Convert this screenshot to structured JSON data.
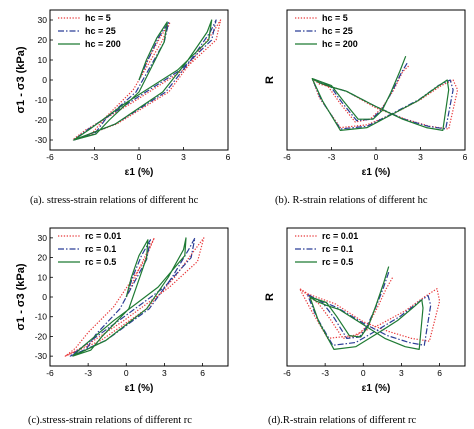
{
  "chart_data": [
    {
      "type": "line",
      "caption": "(a). stress-strain relations of different hc",
      "xlabel": "ε1 (%)",
      "ylabel": "σ1 - σ3 (kPa)",
      "xlim": [
        -6,
        6
      ],
      "ylim": [
        -35,
        35
      ],
      "xticks": [
        "-6",
        "-3",
        "0",
        "3",
        "6"
      ],
      "yticks": [
        "-30",
        "-20",
        "-10",
        "0",
        "10",
        "20",
        "30"
      ],
      "legend": "top-left",
      "series": [
        {
          "name": "hc = 5",
          "color": "#e8393b",
          "dash": "dotted",
          "x": [
            0.0,
            0.6,
            1.4,
            2.1,
            1.6,
            -0.4,
            -2.3,
            -3.2,
            -4.4,
            -1.5,
            2.0,
            3.6,
            5.0,
            5.5,
            5.2,
            3.0,
            -0.6,
            -3.6,
            -4.5
          ],
          "y": [
            0,
            10,
            21,
            29,
            20,
            -5,
            -19,
            -27,
            -30,
            -22,
            -6,
            10,
            24,
            30,
            20,
            5,
            -12,
            -25,
            -30
          ]
        },
        {
          "name": "hc = 25",
          "color": "#2b3d96",
          "dash": "dashdot",
          "x": [
            0.0,
            0.6,
            1.3,
            2.0,
            1.7,
            -0.2,
            -2.2,
            -3.0,
            -4.4,
            -1.6,
            1.8,
            3.5,
            4.8,
            5.2,
            4.9,
            2.8,
            -0.8,
            -3.5,
            -4.4
          ],
          "y": [
            0,
            10,
            21,
            29,
            19,
            -6,
            -19,
            -27,
            -30,
            -22,
            -6,
            10,
            24,
            30,
            20,
            5,
            -12,
            -25,
            -30
          ]
        },
        {
          "name": "hc = 200",
          "color": "#1e7a33",
          "dash": "solid",
          "x": [
            0.0,
            0.5,
            1.2,
            1.9,
            1.7,
            0.0,
            -2.0,
            -2.9,
            -4.4,
            -1.6,
            1.6,
            3.3,
            4.6,
            4.9,
            4.7,
            2.6,
            -1.0,
            -3.4,
            -4.4
          ],
          "y": [
            0,
            10,
            21,
            29,
            19,
            -6,
            -20,
            -27,
            -30,
            -22,
            -6,
            10,
            24,
            30,
            20,
            5,
            -12,
            -25,
            -30
          ]
        }
      ]
    },
    {
      "type": "line",
      "caption": "(b). R-strain relations of different hc",
      "xlabel": "ε1 (%)",
      "ylabel": "R",
      "xlim": [
        -6,
        6
      ],
      "ylim": [
        0.0,
        1.0
      ],
      "xticks": [
        "-6",
        "-3",
        "0",
        "3",
        "6"
      ],
      "legend": "top-left",
      "series": [
        {
          "name": "hc = 5",
          "color": "#e8393b",
          "dash": "dotted",
          "x": [
            2.2,
            1.8,
            1.2,
            0.4,
            -0.4,
            -1.4,
            -2.4,
            -3.2,
            -4.3,
            -3.8,
            -2.4,
            -0.6,
            1.2,
            3.0,
            4.4,
            5.2,
            5.5,
            4.9,
            3.6,
            2.0,
            0.0,
            -2.0,
            -3.0,
            -3.8,
            -4.3
          ],
          "y": [
            0.6,
            0.56,
            0.43,
            0.3,
            0.22,
            0.2,
            0.33,
            0.45,
            0.51,
            0.37,
            0.16,
            0.18,
            0.26,
            0.36,
            0.46,
            0.5,
            0.43,
            0.15,
            0.17,
            0.22,
            0.3,
            0.42,
            0.45,
            0.47,
            0.51
          ]
        },
        {
          "name": "hc = 25",
          "color": "#2b3d96",
          "dash": "dashdot",
          "x": [
            2.1,
            1.7,
            1.1,
            0.4,
            -0.3,
            -1.3,
            -2.3,
            -3.1,
            -4.3,
            -3.7,
            -2.4,
            -0.6,
            1.1,
            2.9,
            4.2,
            5.0,
            5.2,
            4.7,
            3.5,
            1.9,
            0.0,
            -2.0,
            -3.0,
            -3.8,
            -4.3
          ],
          "y": [
            0.62,
            0.55,
            0.42,
            0.29,
            0.22,
            0.21,
            0.34,
            0.46,
            0.51,
            0.36,
            0.15,
            0.17,
            0.26,
            0.36,
            0.46,
            0.5,
            0.43,
            0.15,
            0.17,
            0.22,
            0.31,
            0.42,
            0.45,
            0.48,
            0.51
          ]
        },
        {
          "name": "hc = 200",
          "color": "#1e7a33",
          "dash": "solid",
          "x": [
            2.0,
            1.6,
            1.0,
            0.4,
            -0.2,
            -1.2,
            -2.2,
            -3.0,
            -4.3,
            -3.6,
            -2.4,
            -0.6,
            1.0,
            2.8,
            4.1,
            4.8,
            4.9,
            4.5,
            3.4,
            1.8,
            0.0,
            -2.0,
            -3.0,
            -3.8,
            -4.3
          ],
          "y": [
            0.67,
            0.56,
            0.41,
            0.28,
            0.22,
            0.22,
            0.35,
            0.46,
            0.51,
            0.35,
            0.14,
            0.16,
            0.25,
            0.35,
            0.45,
            0.5,
            0.43,
            0.14,
            0.16,
            0.22,
            0.31,
            0.42,
            0.45,
            0.48,
            0.51
          ]
        }
      ]
    },
    {
      "type": "line",
      "caption": "(c).stress-strain relations of different rc",
      "xlabel": "ε1 (%)",
      "ylabel": "σ1 - σ3 (kPa)",
      "xlim": [
        -6,
        8
      ],
      "ylim": [
        -35,
        35
      ],
      "xticks": [
        "-6",
        "-3",
        "0",
        "3",
        "6"
      ],
      "yticks": [
        "-30",
        "-20",
        "-10",
        "0",
        "10",
        "20",
        "30"
      ],
      "legend": "top-left",
      "series": [
        {
          "name": "rc = 0.01",
          "color": "#e8393b",
          "dash": "dotted",
          "x": [
            0.0,
            0.7,
            1.5,
            2.2,
            1.4,
            -1.0,
            -3.0,
            -4.0,
            -4.8,
            -2.0,
            1.6,
            3.8,
            5.4,
            6.1,
            5.6,
            3.4,
            -0.2,
            -3.0,
            -4.8
          ],
          "y": [
            0,
            10,
            21,
            30,
            18,
            -5,
            -18,
            -26,
            -30,
            -22,
            -6,
            10,
            24,
            30,
            18,
            5,
            -12,
            -24,
            -30
          ]
        },
        {
          "name": "rc = 0.1",
          "color": "#2b3d96",
          "dash": "dashdot",
          "x": [
            0.0,
            0.5,
            1.2,
            1.9,
            1.6,
            -0.5,
            -2.4,
            -3.2,
            -4.4,
            -1.6,
            1.8,
            3.6,
            4.9,
            5.4,
            5.1,
            3.0,
            -0.6,
            -3.4,
            -4.4
          ],
          "y": [
            0,
            10,
            21,
            29,
            19,
            -6,
            -19,
            -27,
            -30,
            -22,
            -6,
            10,
            24,
            30,
            20,
            5,
            -12,
            -25,
            -30
          ]
        },
        {
          "name": "rc = 0.5",
          "color": "#1e7a33",
          "dash": "solid",
          "x": [
            0.0,
            0.4,
            1.0,
            1.7,
            1.6,
            0.2,
            -1.9,
            -2.8,
            -4.2,
            -1.6,
            1.6,
            3.3,
            4.5,
            4.7,
            4.6,
            2.5,
            -1.0,
            -3.4,
            -4.2
          ],
          "y": [
            0,
            10,
            21,
            29,
            20,
            -6,
            -20,
            -27,
            -30,
            -22,
            -6,
            10,
            24,
            30,
            21,
            5,
            -12,
            -25,
            -30
          ]
        }
      ]
    },
    {
      "type": "line",
      "caption": "(d).R-strain relations of different rc",
      "xlabel": "ε1 (%)",
      "ylabel": "R",
      "xlim": [
        -6,
        8
      ],
      "ylim": [
        0.0,
        1.0
      ],
      "xticks": [
        "-6",
        "-3",
        "0",
        "3",
        "6"
      ],
      "legend": "top-left",
      "series": [
        {
          "name": "rc = 0.01",
          "color": "#e8393b",
          "dash": "dotted",
          "x": [
            2.3,
            1.8,
            1.2,
            0.4,
            -0.5,
            -1.6,
            -2.6,
            -3.5,
            -5.0,
            -4.2,
            -2.8,
            -0.8,
            1.3,
            3.3,
            4.8,
            5.8,
            6.0,
            5.2,
            3.8,
            2.0,
            0.0,
            -2.2,
            -3.4,
            -4.3,
            -5.0
          ],
          "y": [
            0.64,
            0.56,
            0.44,
            0.3,
            0.22,
            0.2,
            0.34,
            0.45,
            0.56,
            0.42,
            0.2,
            0.22,
            0.3,
            0.4,
            0.5,
            0.56,
            0.47,
            0.18,
            0.2,
            0.25,
            0.32,
            0.45,
            0.49,
            0.52,
            0.56
          ]
        },
        {
          "name": "rc = 0.1",
          "color": "#2b3d96",
          "dash": "dashdot",
          "x": [
            2.0,
            1.6,
            1.0,
            0.3,
            -0.3,
            -1.3,
            -2.3,
            -3.2,
            -4.4,
            -3.7,
            -2.4,
            -0.6,
            1.1,
            2.9,
            4.3,
            5.1,
            5.3,
            4.8,
            3.6,
            1.9,
            0.0,
            -2.0,
            -3.0,
            -3.8,
            -4.4
          ],
          "y": [
            0.68,
            0.57,
            0.43,
            0.29,
            0.21,
            0.2,
            0.35,
            0.46,
            0.52,
            0.36,
            0.15,
            0.17,
            0.26,
            0.36,
            0.46,
            0.51,
            0.44,
            0.15,
            0.17,
            0.22,
            0.31,
            0.42,
            0.46,
            0.49,
            0.52
          ]
        },
        {
          "name": "rc = 0.5",
          "color": "#1e7a33",
          "dash": "solid",
          "x": [
            2.0,
            1.6,
            1.0,
            0.4,
            -0.2,
            -1.1,
            -2.1,
            -2.9,
            -4.2,
            -3.5,
            -2.3,
            -0.6,
            1.0,
            2.7,
            4.0,
            4.6,
            4.7,
            4.4,
            3.3,
            1.7,
            0.0,
            -1.9,
            -2.9,
            -3.7,
            -4.2
          ],
          "y": [
            0.72,
            0.6,
            0.44,
            0.29,
            0.21,
            0.22,
            0.36,
            0.46,
            0.5,
            0.32,
            0.12,
            0.14,
            0.23,
            0.33,
            0.43,
            0.48,
            0.42,
            0.12,
            0.14,
            0.2,
            0.3,
            0.41,
            0.44,
            0.47,
            0.5
          ]
        }
      ]
    }
  ]
}
